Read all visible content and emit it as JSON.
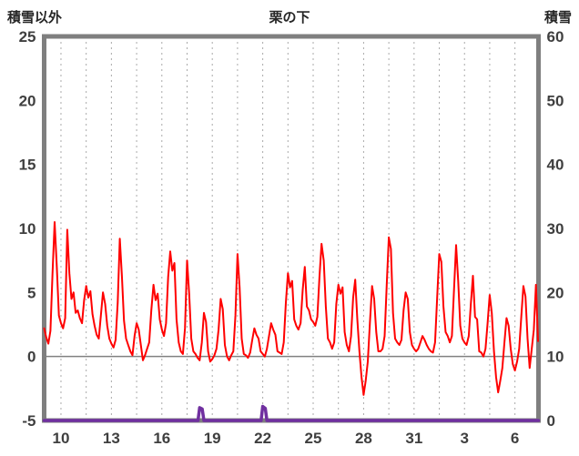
{
  "header": {
    "left_label": "積雪以外",
    "title": "栗の下",
    "right_label": "積雪"
  },
  "chart_data": {
    "type": "line",
    "title": "栗の下",
    "grid": "vertical-dotted",
    "legend": "none",
    "left_axis": {
      "label": "積雪以外",
      "ticks": [
        25,
        20,
        15,
        10,
        5,
        0,
        -5
      ],
      "range": [
        -5,
        25
      ]
    },
    "right_axis": {
      "label": "積雪",
      "ticks": [
        60,
        50,
        40,
        30,
        20,
        10,
        0
      ],
      "range": [
        0,
        60
      ]
    },
    "x_axis": {
      "tick_labels": [
        "10",
        "13",
        "16",
        "19",
        "22",
        "25",
        "28",
        "31",
        "3",
        "6"
      ],
      "tick_days": [
        1,
        4,
        7,
        10,
        13,
        16,
        19,
        22,
        25,
        28
      ],
      "gridline_days": [
        1,
        2.5,
        4,
        5.5,
        7,
        8.5,
        10,
        11.5,
        13,
        14.5,
        16,
        17.5,
        19,
        20.5,
        22,
        23.5,
        25,
        26.5,
        28
      ],
      "range": [
        0,
        29.4
      ]
    },
    "zero_line": {
      "value": 0,
      "axis": "left",
      "color": "#808080"
    },
    "series": [
      {
        "name": "non-snow-red",
        "axis": "left",
        "color": "#ff0000",
        "width": 2,
        "x_start": 0,
        "x_step": 0.125,
        "values": [
          2.2,
          1.5,
          1.0,
          2.0,
          6.5,
          10.5,
          7.0,
          3.2,
          2.6,
          2.2,
          3.0,
          9.9,
          6.5,
          4.5,
          5.0,
          3.4,
          3.6,
          3.0,
          2.6,
          4.4,
          5.5,
          4.6,
          5.1,
          3.3,
          2.4,
          1.7,
          1.4,
          3.2,
          5.0,
          4.1,
          2.4,
          1.4,
          1.0,
          0.7,
          1.3,
          4.2,
          9.2,
          6.3,
          2.8,
          1.4,
          0.9,
          0.4,
          0.1,
          1.6,
          2.6,
          2.1,
          0.9,
          -0.3,
          0.1,
          0.6,
          1.1,
          3.6,
          5.6,
          4.4,
          4.9,
          2.9,
          2.1,
          1.6,
          2.6,
          6.2,
          8.2,
          6.7,
          7.3,
          2.9,
          1.1,
          0.4,
          0.2,
          2.2,
          7.5,
          4.9,
          1.4,
          0.4,
          0.2,
          -0.1,
          -0.3,
          1.1,
          3.4,
          2.7,
          0.4,
          -0.4,
          -0.2,
          0.1,
          0.6,
          2.1,
          4.5,
          3.7,
          0.9,
          0.0,
          -0.3,
          0.1,
          0.4,
          3.2,
          8.0,
          5.4,
          1.4,
          0.2,
          0.1,
          -0.1,
          0.3,
          1.3,
          2.2,
          1.7,
          1.4,
          0.4,
          0.2,
          0.0,
          0.6,
          1.6,
          2.6,
          2.1,
          1.7,
          0.4,
          0.3,
          0.2,
          1.1,
          4.2,
          6.5,
          5.4,
          5.9,
          2.9,
          2.4,
          2.1,
          2.6,
          5.2,
          7.0,
          3.9,
          3.6,
          2.9,
          2.7,
          2.4,
          3.1,
          6.2,
          8.8,
          7.5,
          3.9,
          1.4,
          1.1,
          0.6,
          1.1,
          4.1,
          5.6,
          4.9,
          5.4,
          1.9,
          0.9,
          0.4,
          1.6,
          4.6,
          6.0,
          2.9,
          0.4,
          -1.6,
          -3.0,
          -1.9,
          -0.4,
          2.6,
          5.5,
          4.5,
          1.9,
          0.4,
          0.4,
          0.6,
          1.6,
          5.6,
          9.3,
          8.4,
          3.4,
          1.4,
          1.1,
          0.9,
          1.3,
          3.6,
          5.0,
          4.5,
          1.9,
          0.9,
          0.6,
          0.4,
          0.6,
          1.1,
          1.6,
          1.3,
          0.9,
          0.6,
          0.4,
          0.3,
          1.1,
          4.6,
          8.0,
          7.4,
          3.9,
          1.9,
          1.6,
          1.1,
          1.6,
          5.2,
          8.7,
          5.9,
          2.4,
          1.4,
          1.1,
          0.9,
          1.6,
          4.1,
          6.3,
          3.1,
          2.9,
          0.4,
          0.3,
          0.0,
          0.6,
          2.6,
          4.8,
          3.4,
          0.4,
          -1.6,
          -2.8,
          -1.9,
          -0.9,
          1.1,
          3.0,
          2.4,
          0.6,
          -0.6,
          -1.1,
          -0.4,
          0.6,
          3.1,
          5.5,
          4.7,
          1.4,
          -0.9,
          0.6,
          2.1,
          5.6,
          1.2
        ]
      },
      {
        "name": "snow-depth-purple",
        "axis": "right",
        "color": "#7030a0",
        "width": 3.5,
        "points": [
          [
            0,
            0
          ],
          [
            9.15,
            0
          ],
          [
            9.25,
            2.0
          ],
          [
            9.4,
            1.8
          ],
          [
            9.5,
            0
          ],
          [
            12.9,
            0
          ],
          [
            13.0,
            2.2
          ],
          [
            13.15,
            1.9
          ],
          [
            13.25,
            0
          ],
          [
            29.4,
            0
          ]
        ]
      }
    ],
    "colors": {
      "border": "#7f7f7f",
      "gridline": "#aaaaaa",
      "zero_line": "#808080",
      "tick_text": "#3f3f3f"
    }
  }
}
